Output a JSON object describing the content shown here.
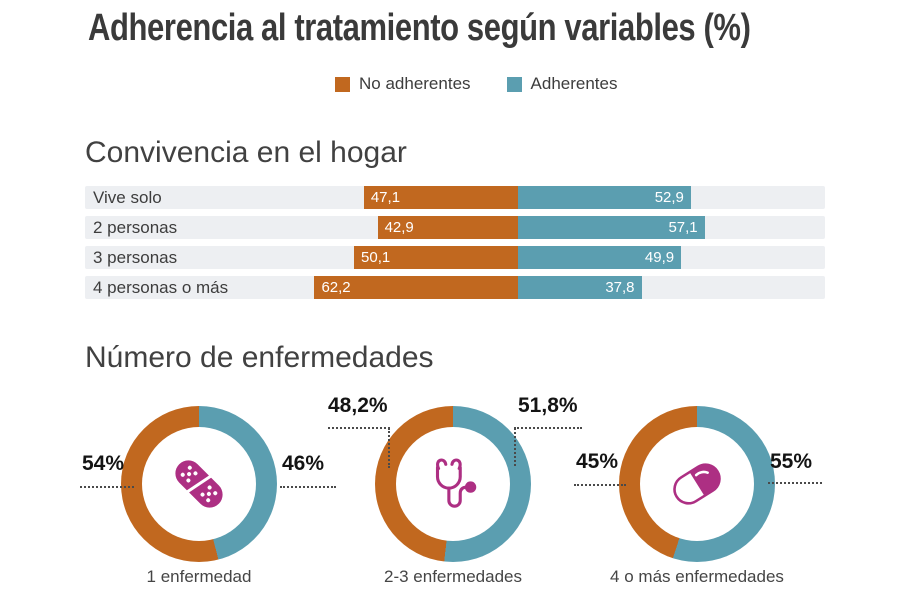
{
  "title": "Adherencia al tratamiento según variables (%)",
  "legend": {
    "items": [
      {
        "label": "No adherentes",
        "color": "#c1681f"
      },
      {
        "label": "Adherentes",
        "color": "#5b9eb0"
      }
    ]
  },
  "colors": {
    "no_adherentes": "#c1681f",
    "adherentes": "#5b9eb0",
    "bar_track": "#edeff2",
    "icon_magenta": "#ad2f83",
    "title_text": "#3a3a3a"
  },
  "chart_data": [
    {
      "type": "bar",
      "variant": "diverging-stacked-horizontal",
      "section_title": "Convivencia en el hogar",
      "categories": [
        "Vive solo",
        "2 personas",
        "3 personas",
        "4 personas o más"
      ],
      "series": [
        {
          "name": "No adherentes",
          "color": "#c1681f",
          "values": [
            47.1,
            42.9,
            50.1,
            62.2
          ],
          "labels": [
            "47,1",
            "42,9",
            "50,1",
            "62,2"
          ]
        },
        {
          "name": "Adherentes",
          "color": "#5b9eb0",
          "values": [
            52.9,
            57.1,
            49.9,
            37.8
          ],
          "labels": [
            "52,9",
            "57,1",
            "49,9",
            "37,8"
          ]
        }
      ],
      "xlim": [
        0,
        100
      ],
      "layout": {
        "center_pct": 58.5,
        "pct_per_unit": 0.442
      }
    },
    {
      "type": "pie",
      "variant": "donut",
      "section_title": "Número de enfermedades",
      "series_colors": {
        "no_adherentes": "#c1681f",
        "adherentes": "#5b9eb0"
      },
      "donuts": [
        {
          "caption": "1 enfermedad",
          "icon": "bandage-icon",
          "values": {
            "no_adherentes": 54,
            "adherentes": 46
          },
          "left_label": "54%",
          "right_label": "46%"
        },
        {
          "caption": "2-3 enfermedades",
          "icon": "stethoscope-icon",
          "values": {
            "no_adherentes": 48.2,
            "adherentes": 51.8
          },
          "left_label": "48,2%",
          "right_label": "51,8%"
        },
        {
          "caption": "4 o más enfermedades",
          "icon": "pill-icon",
          "values": {
            "no_adherentes": 45,
            "adherentes": 55
          },
          "left_label": "45%",
          "right_label": "55%"
        }
      ]
    }
  ]
}
